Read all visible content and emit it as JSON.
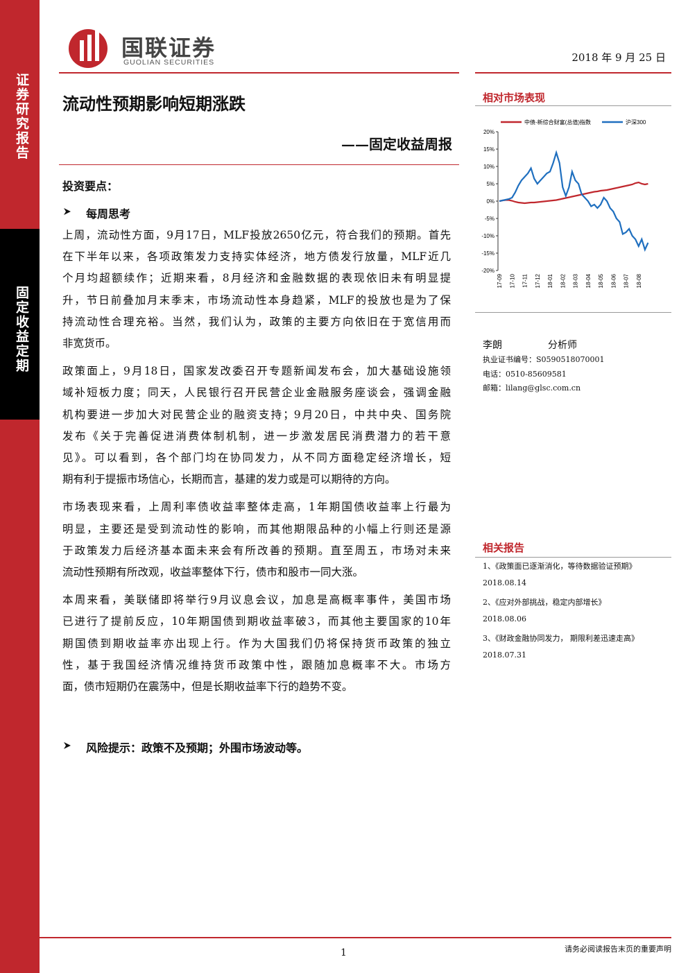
{
  "header": {
    "logo_name": "国联证券",
    "logo_english": "GUOLIAN SECURITIES",
    "date": "2018 年 9 月 25 日"
  },
  "sidebar": {
    "top": "证券研究报告",
    "bottom": "固定收益定期"
  },
  "title": "流动性预期影响短期涨跌",
  "subtitle": "——固定收益周报",
  "body": {
    "heading": "投资要点：",
    "section": "每周思考",
    "paragraphs": [
      [
        "上周，流动性方面，9月17日，MLF投放2650亿元，符合我们的预期。首先",
        "在下半年以来，各项政策发力支持实体经济，地方债发行放量，MLF近几",
        "个月均超额续作；近期来看，8月经济和金融数据的表现依旧未有明显提",
        "升，节日前叠加月末季末，市场流动性本身趋紧，MLF的投放也是为了保",
        "持流动性合理充裕。当然，我们认为，政策的主要方向依旧在于宽信用而",
        "非宽货币。"
      ],
      [
        "政策面上，9月18日，国家发改委召开专题新闻发布会，加大基础设施领",
        "域补短板力度；同天，人民银行召开民营企业金融服务座谈会，强调金融",
        "机构要进一步加大对民营企业的融资支持；9月20日，中共中央、国务院",
        "发布《关于完善促进消费体制机制，进一步激发居民消费潜力的若干意",
        "见》。可以看到，各个部门均在协同发力，从不同方面稳定经济增长，短",
        "期有利于提振市场信心，长期而言，基建的发力或是可以期待的方向。"
      ],
      [
        "市场表现来看，上周利率债收益率整体走高，1年期国债收益率上行最为",
        "明显，主要还是受到流动性的影响，而其他期限品种的小幅上行则还是源",
        "于政策发力后经济基本面未来会有所改善的预期。直至周五，市场对未来",
        "流动性预期有所改观，收益率整体下行，债市和股市一同大涨。"
      ],
      [
        "本周来看，美联储即将举行9月议息会议，加息是高概率事件，美国市场",
        "已进行了提前反应，10年期国债到期收益率破3，而其他主要国家的10年",
        "期国债到期收益率亦出现上行。作为大国我们仍将保持货币政策的独立",
        "性，基于我国经济情况维持货币政策中性，跟随加息概率不大。市场方",
        "面，债市短期仍在震荡中，但是长期收益率下行的趋势不变。"
      ]
    ],
    "risk": "风险提示：政策不及预期；外围市场波动等。"
  },
  "sidebar_right": {
    "chart_heading": "相对市场表现",
    "analyst": {
      "name": "李朗",
      "role": "分析师",
      "cert": "执业证书编号：S0590518070001",
      "phone": "电话：0510-85609581",
      "email": "邮箱：lilang@glsc.com.cn"
    },
    "related_heading": "相关报告",
    "related": [
      {
        "title": "1、《政策面已逐渐消化，等待数据验证预期》",
        "date": "2018.08.14"
      },
      {
        "title": "2、《应对外部挑战，稳定内部增长》",
        "date": "2018.08.06"
      },
      {
        "title": "3、《财政金融协同发力， 期限利差迅速走高》",
        "date": "2018.07.31"
      }
    ]
  },
  "chart_data": {
    "type": "line",
    "categories": [
      "17-09",
      null,
      null,
      null,
      "17-10",
      null,
      null,
      null,
      "17-11",
      null,
      null,
      null,
      "17-12",
      null,
      null,
      null,
      "18-01",
      null,
      null,
      null,
      "18-02",
      null,
      null,
      null,
      "18-03",
      null,
      null,
      null,
      "18-04",
      null,
      null,
      null,
      "18-05",
      null,
      null,
      null,
      "18-06",
      null,
      null,
      null,
      "18-07",
      null,
      null,
      null,
      "18-08",
      null,
      null,
      null
    ],
    "series": [
      {
        "name": "中债-新综合财富(总值)指数",
        "color": "#c0272d",
        "values": [
          0,
          0.2,
          0.3,
          0.3,
          0.1,
          -0.2,
          -0.4,
          -0.5,
          -0.6,
          -0.5,
          -0.4,
          -0.4,
          -0.3,
          -0.2,
          -0.1,
          0,
          0.1,
          0.2,
          0.3,
          0.5,
          0.7,
          0.9,
          1.1,
          1.3,
          1.5,
          1.7,
          1.9,
          2.1,
          2.3,
          2.5,
          2.7,
          2.8,
          3.0,
          3.1,
          3.2,
          3.4,
          3.6,
          3.8,
          4,
          4.2,
          4.4,
          4.6,
          4.8,
          5.2,
          5.4,
          5.0,
          4.8,
          5.0
        ]
      },
      {
        "name": "沪深300",
        "color": "#1f6fbf",
        "values": [
          0,
          0.2,
          0.4,
          0.6,
          1,
          2.5,
          4.5,
          6,
          7,
          8,
          9.5,
          6.5,
          5,
          6,
          7,
          8,
          8.5,
          11,
          14,
          11,
          4,
          1.5,
          4,
          8.5,
          6,
          5,
          2,
          1,
          0,
          -1.5,
          -1,
          -2,
          -1,
          1,
          0,
          -2,
          -3,
          -5,
          -6,
          -9.5,
          -9,
          -8,
          -10,
          -11,
          -13,
          -11,
          -14,
          -12
        ]
      }
    ],
    "ylim": [
      -20,
      20
    ],
    "yticks": [
      {
        "value": -20,
        "label": "-20%"
      },
      {
        "value": -15,
        "label": "-15%"
      },
      {
        "value": -10,
        "label": "-10%"
      },
      {
        "value": -5,
        "label": "-5%"
      },
      {
        "value": 0,
        "label": "0%"
      },
      {
        "value": 5,
        "label": "5%"
      },
      {
        "value": 10,
        "label": "10%"
      },
      {
        "value": 15,
        "label": "15%"
      },
      {
        "value": 20,
        "label": "20%"
      }
    ]
  },
  "footer": {
    "page": "1",
    "notice": "请务必阅读报告末页的重要声明"
  }
}
